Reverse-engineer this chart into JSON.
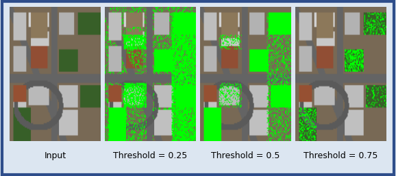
{
  "figure_bg": "#dce6f1",
  "border_color": "#2e4d8a",
  "border_lw": 3,
  "labels": [
    "Input",
    "Threshold = 0.25",
    "Threshold = 0.5",
    "Threshold = 0.75"
  ],
  "label_fontsize": 9,
  "label_color": "#000000",
  "figsize": [
    5.78,
    2.57
  ],
  "dpi": 100,
  "thresholds": [
    null,
    0.25,
    0.5,
    0.75
  ]
}
